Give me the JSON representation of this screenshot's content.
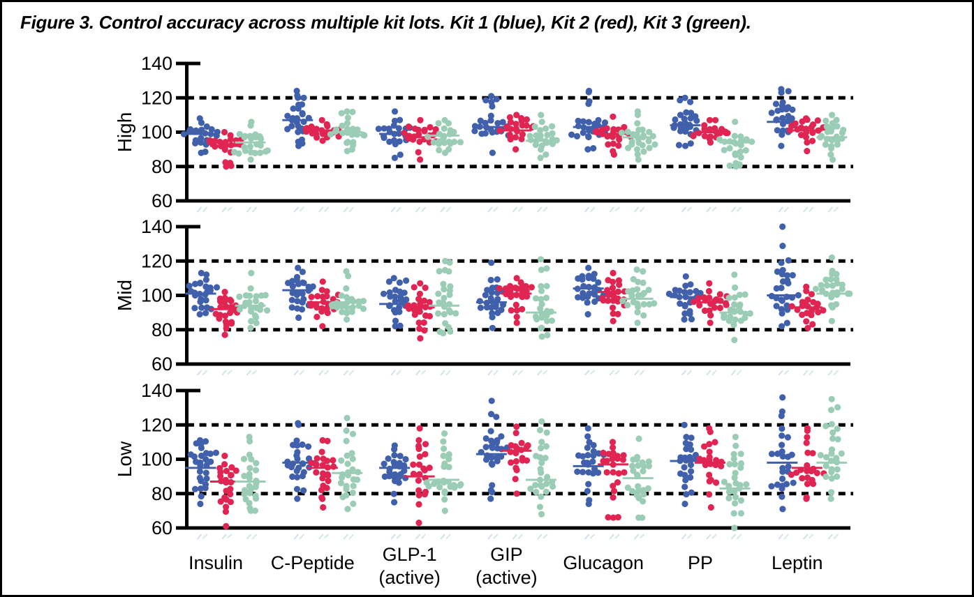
{
  "figure": {
    "title": "Figure 3. Control accuracy across multiple kit lots. Kit 1 (blue), Kit 2 (red), Kit 3 (green)."
  },
  "chart_data": {
    "type": "scatter",
    "subtype": "beeswarm-panels",
    "title": "Figure 3. Control accuracy across multiple kit lots. Kit 1 (blue), Kit 2 (red), Kit 3 (green).",
    "panels": [
      "High",
      "Mid",
      "Low"
    ],
    "categories": [
      {
        "label": "Insulin"
      },
      {
        "label": "C-Peptide"
      },
      {
        "label": "GLP-1",
        "label2": "(active)"
      },
      {
        "label": "GIP",
        "label2": "(active)"
      },
      {
        "label": "Glucagon"
      },
      {
        "label": "PP"
      },
      {
        "label": "Leptin"
      }
    ],
    "series": [
      {
        "name": "Kit 1",
        "color": "#4160AC"
      },
      {
        "name": "Kit 2",
        "color": "#E02552"
      },
      {
        "name": "Kit 3",
        "color": "#9BCDB6"
      }
    ],
    "ylim": [
      60,
      140
    ],
    "yticks": [
      60,
      80,
      100,
      120,
      140
    ],
    "reference_lines": [
      80,
      120
    ],
    "grid": false,
    "legend_position": "in-title",
    "cluster_format": [
      "mean",
      "min",
      "max",
      "n"
    ],
    "clusters": {
      "High": [
        [
          [
            99,
            88,
            108,
            24
          ],
          [
            92,
            80,
            100,
            22
          ],
          [
            94,
            84,
            106,
            24
          ]
        ],
        [
          [
            107,
            92,
            124,
            28
          ],
          [
            101,
            95,
            107,
            22
          ],
          [
            100,
            89,
            112,
            24
          ]
        ],
        [
          [
            99,
            85,
            112,
            24
          ],
          [
            97,
            84,
            107,
            22
          ],
          [
            98,
            88,
            107,
            22
          ]
        ],
        [
          [
            103,
            88,
            121,
            26
          ],
          [
            101,
            90,
            110,
            22
          ],
          [
            95,
            85,
            110,
            24
          ]
        ],
        [
          [
            103,
            90,
            124,
            26
          ],
          [
            99,
            87,
            109,
            24
          ],
          [
            97,
            84,
            112,
            26
          ]
        ],
        [
          [
            104,
            92,
            120,
            26
          ],
          [
            100,
            94,
            107,
            20
          ],
          [
            94,
            80,
            106,
            24
          ]
        ],
        [
          [
            106,
            92,
            125,
            26
          ],
          [
            101,
            89,
            108,
            22
          ],
          [
            97,
            84,
            110,
            24
          ]
        ]
      ],
      "Mid": [
        [
          [
            101,
            89,
            113,
            26
          ],
          [
            92,
            77,
            102,
            24
          ],
          [
            94,
            81,
            113,
            24
          ]
        ],
        [
          [
            103,
            87,
            116,
            26
          ],
          [
            96,
            82,
            108,
            24
          ],
          [
            96,
            86,
            114,
            24
          ]
        ],
        [
          [
            95,
            82,
            110,
            26
          ],
          [
            93,
            75,
            107,
            24
          ],
          [
            94,
            78,
            120,
            26
          ]
        ],
        [
          [
            96,
            81,
            119,
            26
          ],
          [
            101,
            84,
            110,
            24
          ],
          [
            90,
            76,
            121,
            24
          ]
        ],
        [
          [
            104,
            89,
            116,
            26
          ],
          [
            102,
            85,
            113,
            24
          ],
          [
            98,
            84,
            115,
            24
          ]
        ],
        [
          [
            99,
            86,
            111,
            24
          ],
          [
            96,
            84,
            107,
            22
          ],
          [
            90,
            74,
            112,
            24
          ]
        ],
        [
          [
            100,
            82,
            140,
            28
          ],
          [
            93,
            81,
            105,
            22
          ],
          [
            101,
            85,
            122,
            26
          ]
        ]
      ],
      "Low": [
        [
          [
            95,
            74,
            111,
            28
          ],
          [
            87,
            61,
            102,
            24
          ],
          [
            87,
            70,
            113,
            26
          ]
        ],
        [
          [
            98,
            77,
            121,
            28
          ],
          [
            95,
            72,
            111,
            24
          ],
          [
            92,
            71,
            124,
            26
          ]
        ],
        [
          [
            95,
            75,
            108,
            26
          ],
          [
            90,
            63,
            118,
            22
          ],
          [
            88,
            70,
            115,
            26
          ]
        ],
        [
          [
            103,
            77,
            134,
            28
          ],
          [
            105,
            80,
            119,
            20
          ],
          [
            88,
            68,
            122,
            26
          ]
        ],
        [
          [
            96,
            74,
            118,
            26
          ],
          [
            97,
            66,
            110,
            24
          ],
          [
            89,
            66,
            112,
            26
          ]
        ],
        [
          [
            99,
            74,
            120,
            26
          ],
          [
            98,
            72,
            118,
            22
          ],
          [
            83,
            60,
            113,
            26
          ]
        ],
        [
          [
            98,
            71,
            136,
            26
          ],
          [
            95,
            77,
            118,
            22
          ],
          [
            98,
            77,
            135,
            26
          ]
        ]
      ]
    }
  }
}
